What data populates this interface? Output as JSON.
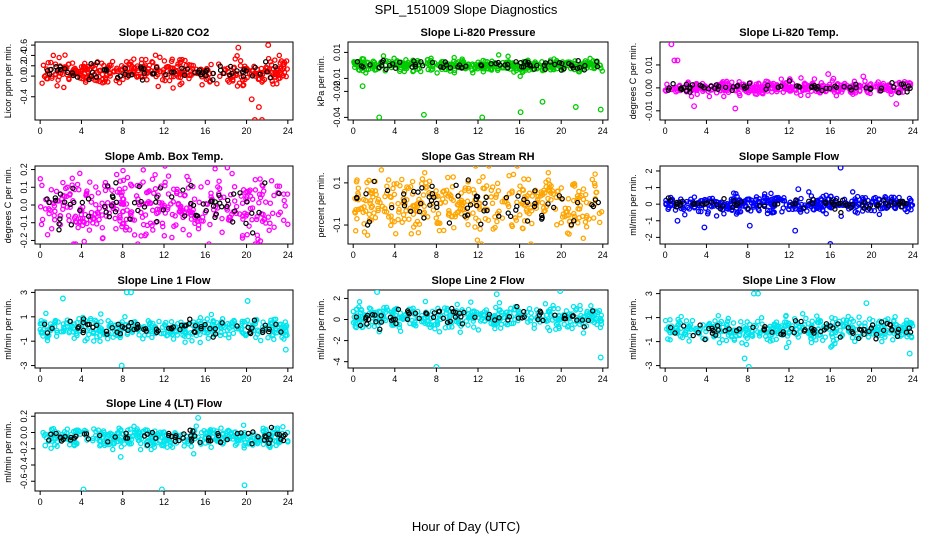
{
  "page": {
    "title": "SPL_151009  Slope Diagnostics",
    "xlabel": "Hour of Day (UTC)"
  },
  "chart_data": [
    {
      "type": "scatter",
      "title": "Slope Li-820 CO2",
      "ylabel": "Licor ppm per min.",
      "color": "#ff0000",
      "x_ticks": [
        0,
        4,
        8,
        12,
        16,
        20,
        24
      ],
      "xlim": [
        -0.5,
        24.5
      ],
      "y_ticks": [
        "-0.4",
        "0.0",
        "0.2",
        "0.4",
        "0.6"
      ],
      "y_tick_values": [
        -0.4,
        0.0,
        0.2,
        0.4,
        0.6
      ],
      "ylim": [
        -0.85,
        0.66
      ],
      "center": 0.08,
      "spread": 0.12,
      "outliers": [
        [
          20.5,
          -0.45
        ],
        [
          21.2,
          -0.6
        ],
        [
          22.1,
          0.6
        ],
        [
          20.8,
          -0.85
        ],
        [
          21.5,
          -0.85
        ],
        [
          19.2,
          0.55
        ]
      ]
    },
    {
      "type": "scatter",
      "title": "Slope Li-820 Pressure",
      "ylabel": "kPa per min.",
      "color": "#00cc00",
      "x_ticks": [
        0,
        4,
        8,
        12,
        16,
        20,
        24
      ],
      "xlim": [
        -0.5,
        24.5
      ],
      "y_ticks": [
        "-0.04",
        "-0.02",
        "-0.01",
        "0.01"
      ],
      "y_tick_values": [
        -0.04,
        -0.02,
        -0.01,
        0.01
      ],
      "ylim": [
        -0.042,
        0.018
      ],
      "center": 0.0,
      "spread": 0.0025,
      "outliers": [
        [
          2.5,
          -0.04
        ],
        [
          6.8,
          -0.038
        ],
        [
          12.4,
          -0.04
        ],
        [
          16.1,
          -0.036
        ],
        [
          18.2,
          -0.028
        ],
        [
          21.4,
          -0.032
        ],
        [
          23.8,
          -0.034
        ],
        [
          0.9,
          -0.016
        ]
      ]
    },
    {
      "type": "scatter",
      "title": "Slope Li-820 Temp.",
      "ylabel": "degrees C per min.",
      "color": "#ff00ff",
      "x_ticks": [
        0,
        4,
        8,
        12,
        16,
        20,
        24
      ],
      "xlim": [
        -0.5,
        24.5
      ],
      "y_ticks": [
        "-0.01",
        "0.00",
        "0.01"
      ],
      "y_tick_values": [
        -0.01,
        0.0,
        0.01
      ],
      "ylim": [
        -0.014,
        0.02
      ],
      "center": 0.0,
      "spread": 0.0015,
      "outliers": [
        [
          0.6,
          0.019
        ],
        [
          0.9,
          0.012
        ],
        [
          1.2,
          0.012
        ],
        [
          15.8,
          0.006
        ],
        [
          16.3,
          0.004
        ],
        [
          19.2,
          0.005
        ],
        [
          2.8,
          -0.008
        ],
        [
          6.8,
          -0.009
        ],
        [
          22.4,
          -0.007
        ]
      ]
    },
    {
      "type": "scatter",
      "title": "Slope Amb. Box Temp.",
      "ylabel": "degrees C per min.",
      "color": "#ff00ff",
      "x_ticks": [
        0,
        4,
        8,
        12,
        16,
        20,
        24
      ],
      "xlim": [
        -0.5,
        24.5
      ],
      "y_ticks": [
        "-0.2",
        "-0.1",
        "0.0",
        "0.1",
        "0.2"
      ],
      "y_tick_values": [
        -0.2,
        -0.1,
        0.0,
        0.1,
        0.2
      ],
      "ylim": [
        -0.22,
        0.22
      ],
      "center": 0.0,
      "spread": 0.09,
      "outliers": []
    },
    {
      "type": "scatter",
      "title": "Slope Gas Stream RH",
      "ylabel": "percent per min.",
      "color": "#ffa500",
      "x_ticks": [
        0,
        4,
        8,
        12,
        16,
        20,
        24
      ],
      "xlim": [
        -0.5,
        24.5
      ],
      "y_ticks": [
        "-0.1",
        "0.1"
      ],
      "y_tick_values": [
        -0.1,
        0.1
      ],
      "ylim": [
        -0.19,
        0.18
      ],
      "center": 0.0,
      "spread": 0.075,
      "outliers": []
    },
    {
      "type": "scatter",
      "title": "Slope Sample Flow",
      "ylabel": "ml/min per min.",
      "color": "#0000ff",
      "x_ticks": [
        0,
        4,
        8,
        12,
        16,
        20,
        24
      ],
      "xlim": [
        -0.5,
        24.5
      ],
      "y_ticks": [
        "-2",
        "-1",
        "0",
        "1",
        "2"
      ],
      "y_tick_values": [
        -2,
        -1,
        0,
        1,
        2
      ],
      "ylim": [
        -2.4,
        2.3
      ],
      "center": 0.0,
      "spread": 0.25,
      "outliers": [
        [
          16.0,
          -2.4
        ],
        [
          17.0,
          2.2
        ],
        [
          12.6,
          -1.6
        ],
        [
          8.2,
          -1.3
        ],
        [
          3.8,
          -1.4
        ],
        [
          12.9,
          0.9
        ],
        [
          1.2,
          -1.0
        ]
      ]
    },
    {
      "type": "scatter",
      "title": "Slope Line 1 Flow",
      "ylabel": "ml/min per min.",
      "color": "#00e5ee",
      "x_ticks": [
        0,
        4,
        8,
        12,
        16,
        20,
        24
      ],
      "xlim": [
        -0.5,
        24.5
      ],
      "y_ticks": [
        "-3",
        "-1",
        "1",
        "3"
      ],
      "y_tick_values": [
        -3,
        -1,
        1,
        3
      ],
      "ylim": [
        -3.2,
        3.2
      ],
      "center": 0.0,
      "spread": 0.45,
      "outliers": [
        [
          8.4,
          3.0
        ],
        [
          8.8,
          3.0
        ],
        [
          7.9,
          -3.0
        ],
        [
          2.2,
          2.5
        ],
        [
          20.1,
          2.3
        ],
        [
          23.8,
          -1.7
        ]
      ]
    },
    {
      "type": "scatter",
      "title": "Slope Line 2 Flow",
      "ylabel": "ml/min per min.",
      "color": "#00e5ee",
      "x_ticks": [
        0,
        4,
        8,
        12,
        16,
        20,
        24
      ],
      "xlim": [
        -0.5,
        24.5
      ],
      "y_ticks": [
        "-4",
        "-2",
        "0",
        "2"
      ],
      "y_tick_values": [
        -4,
        -2,
        0,
        2
      ],
      "ylim": [
        -4.6,
        2.8
      ],
      "center": 0.2,
      "spread": 0.55,
      "outliers": [
        [
          8.0,
          -4.5
        ],
        [
          23.8,
          -3.6
        ],
        [
          2.3,
          2.6
        ],
        [
          19.9,
          2.7
        ],
        [
          13.8,
          2.4
        ]
      ]
    },
    {
      "type": "scatter",
      "title": "Slope Line 3 Flow",
      "ylabel": "ml/min per min.",
      "color": "#00e5ee",
      "x_ticks": [
        0,
        4,
        8,
        12,
        16,
        20,
        24
      ],
      "xlim": [
        -0.5,
        24.5
      ],
      "y_ticks": [
        "-3",
        "-1",
        "1",
        "3"
      ],
      "y_tick_values": [
        -3,
        -1,
        1,
        3
      ],
      "ylim": [
        -3.2,
        3.3
      ],
      "center": 0.0,
      "spread": 0.5,
      "outliers": [
        [
          8.6,
          3.0
        ],
        [
          9.0,
          3.0
        ],
        [
          8.1,
          -3.1
        ],
        [
          19.5,
          2.2
        ],
        [
          23.7,
          -2.0
        ],
        [
          7.7,
          -2.4
        ]
      ]
    },
    {
      "type": "scatter",
      "title": "Slope Line 4 (LT) Flow",
      "ylabel": "ml/min per min.",
      "color": "#00e5ee",
      "x_ticks": [
        0,
        4,
        8,
        12,
        16,
        20,
        24
      ],
      "xlim": [
        -0.5,
        24.5
      ],
      "y_ticks": [
        "-0.6",
        "-0.4",
        "-0.2",
        "0.0",
        "0.2"
      ],
      "y_tick_values": [
        -0.6,
        -0.4,
        -0.2,
        0.0,
        0.2
      ],
      "ylim": [
        -0.72,
        0.24
      ],
      "center": -0.06,
      "spread": 0.06,
      "outliers": [
        [
          4.2,
          -0.7
        ],
        [
          11.8,
          -0.7
        ],
        [
          19.8,
          -0.65
        ],
        [
          15.3,
          0.18
        ],
        [
          0.5,
          -0.16
        ],
        [
          7.8,
          -0.3
        ]
      ]
    }
  ]
}
